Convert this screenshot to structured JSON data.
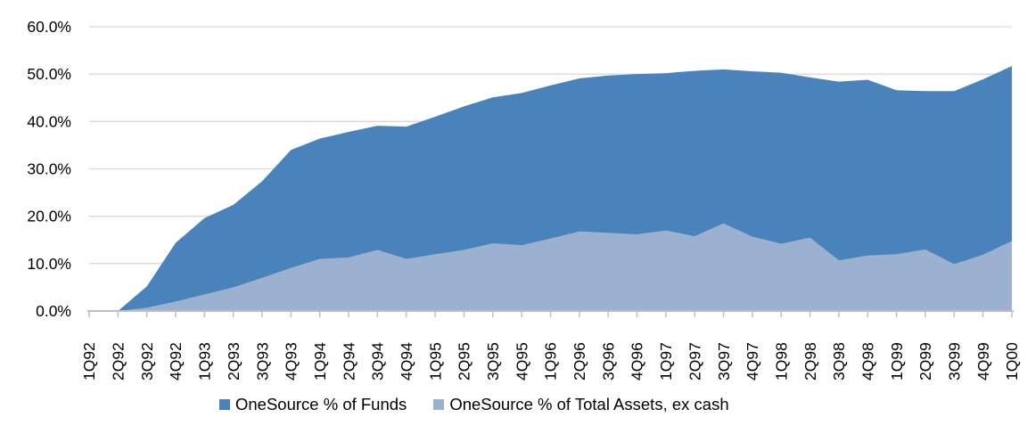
{
  "chart_data": {
    "type": "area",
    "mode": "overlay",
    "title": "",
    "xlabel": "",
    "ylabel": "",
    "categories": [
      "1Q92",
      "2Q92",
      "3Q92",
      "4Q92",
      "1Q93",
      "2Q93",
      "3Q93",
      "4Q93",
      "1Q94",
      "2Q94",
      "3Q94",
      "4Q94",
      "1Q95",
      "2Q95",
      "3Q95",
      "4Q95",
      "1Q96",
      "2Q96",
      "3Q96",
      "4Q96",
      "1Q97",
      "2Q97",
      "3Q97",
      "4Q97",
      "1Q98",
      "2Q98",
      "3Q98",
      "4Q98",
      "1Q99",
      "2Q99",
      "3Q99",
      "4Q99",
      "1Q00"
    ],
    "series": [
      {
        "name": "OneSource % of Funds",
        "color": "#4A83BC",
        "values": [
          0.0,
          0.0,
          5.2,
          14.4,
          19.6,
          22.4,
          27.4,
          34.0,
          36.4,
          37.8,
          39.1,
          38.9,
          41.0,
          43.2,
          45.1,
          46.0,
          47.6,
          49.1,
          49.7,
          50.0,
          50.2,
          50.7,
          51.0,
          50.6,
          50.3,
          49.3,
          48.4,
          48.8,
          46.6,
          46.4,
          46.4,
          48.9,
          51.7
        ]
      },
      {
        "name": "OneSource % of Total Assets, ex cash",
        "color": "#9BB1CF",
        "values": [
          0.0,
          0.0,
          0.7,
          2.0,
          3.5,
          5.0,
          7.0,
          9.1,
          11.0,
          11.3,
          12.9,
          11.0,
          12.0,
          12.9,
          14.3,
          13.9,
          15.3,
          16.8,
          16.5,
          16.2,
          17.0,
          15.8,
          18.5,
          15.7,
          14.2,
          15.5,
          10.7,
          11.7,
          12.0,
          13.0,
          9.9,
          11.9,
          14.8
        ]
      }
    ],
    "y_axis": {
      "min": 0,
      "max": 60,
      "step": 10,
      "tick_labels": [
        "0.0%",
        "10.0%",
        "20.0%",
        "30.0%",
        "40.0%",
        "50.0%",
        "60.0%"
      ]
    },
    "grid": true,
    "gridline_color": "#D9D9D9",
    "axis_color": "#BFBFBF",
    "tick_label_color": "#000000",
    "legend_position": "bottom"
  }
}
